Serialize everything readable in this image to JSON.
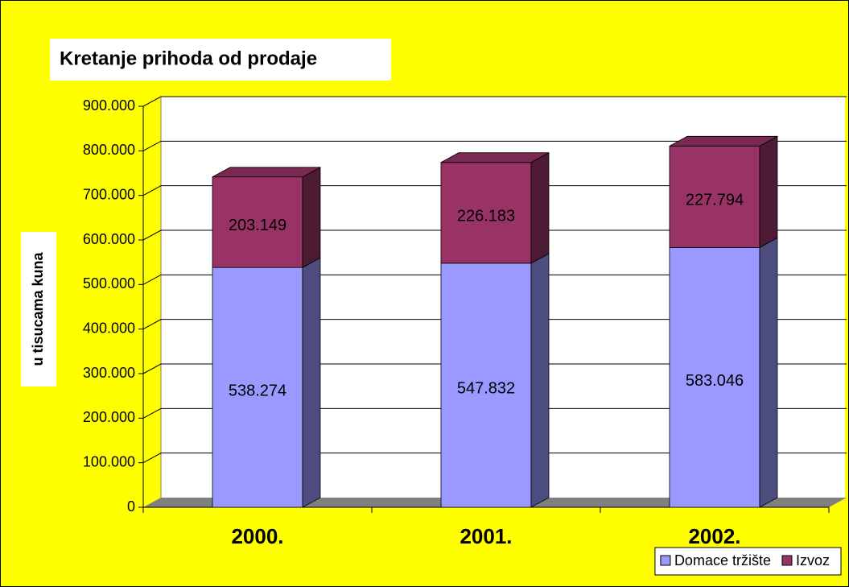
{
  "chart_data": {
    "type": "bar",
    "stacked": true,
    "three_d": true,
    "title": "Kretanje prihoda od prodaje",
    "y_label": "u tisucama kuna",
    "categories": [
      "2000.",
      "2001.",
      "2002."
    ],
    "series": [
      {
        "name": "Domace tržište",
        "color": "#9999ff",
        "values": [
          538274,
          547832,
          583046
        ],
        "value_labels": [
          "538.274",
          "547.832",
          "583.046"
        ]
      },
      {
        "name": "Izvoz",
        "color": "#993366",
        "values": [
          203149,
          226183,
          227794
        ],
        "value_labels": [
          "203.149",
          "226.183",
          "227.794"
        ]
      }
    ],
    "ylim": [
      0,
      900000
    ],
    "yticks": [
      0,
      {
        "value": 100000,
        "label": "100.000"
      },
      {
        "value": 200000,
        "label": "200.000"
      },
      {
        "value": 300000,
        "label": "300.000"
      },
      {
        "value": 400000,
        "label": "400.000"
      },
      {
        "value": 500000,
        "label": "500.000"
      },
      {
        "value": 600000,
        "label": "600.000"
      },
      {
        "value": 700000,
        "label": "700.000"
      },
      {
        "value": 800000,
        "label": "800.000"
      },
      {
        "value": 900000,
        "label": "900.000"
      }
    ],
    "grid": true,
    "legend": "bottom-right"
  }
}
